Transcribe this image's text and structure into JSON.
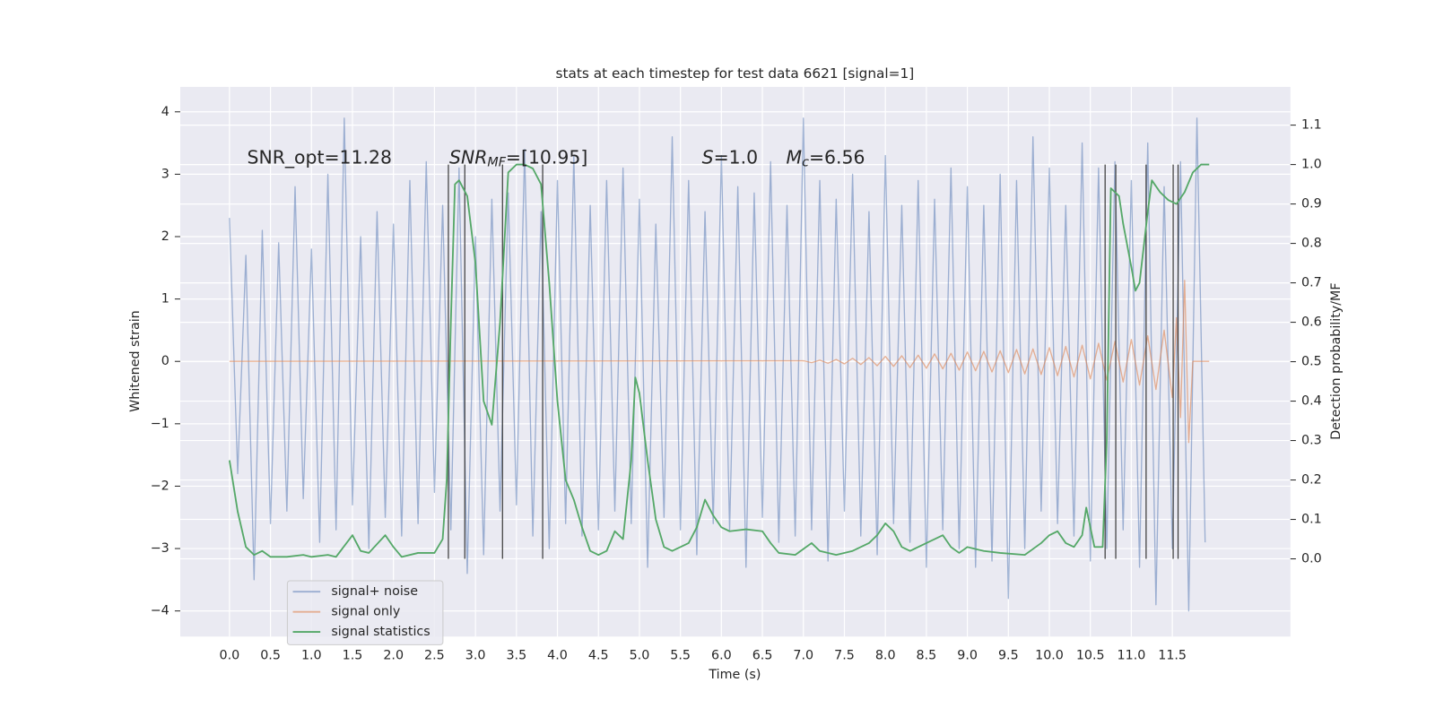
{
  "chart_data": {
    "type": "line",
    "title": "stats at each timestep for test data 6621 [signal=1]",
    "x_label": "Time (s)",
    "y_label": "Whitened strain",
    "y2_label": "Detection probability/MF",
    "xlim": [
      -0.6,
      12.94
    ],
    "ylim": [
      -4.41,
      4.4
    ],
    "y2lim": [
      -0.197,
      1.197
    ],
    "xticks": [
      {
        "value": 0,
        "label": "0.0"
      },
      0.5,
      {
        "value": 1,
        "label": "1.0"
      },
      1.5,
      {
        "value": 2,
        "label": "2.0"
      },
      2.5,
      {
        "value": 3,
        "label": "3.0"
      },
      3.5,
      {
        "value": 4,
        "label": "4.0"
      },
      4.5,
      {
        "value": 5,
        "label": "5.0"
      },
      5.5,
      {
        "value": 6,
        "label": "6.0"
      },
      6.5,
      {
        "value": 7,
        "label": "7.0"
      },
      7.5,
      {
        "value": 8,
        "label": "8.0"
      },
      8.5,
      {
        "value": 9,
        "label": "9.0"
      },
      9.5,
      {
        "value": 10,
        "label": "10.0"
      },
      10.5,
      {
        "value": 11,
        "label": "11.0"
      },
      11.5
    ],
    "yticks": [
      {
        "value": -4,
        "label": "−4"
      },
      {
        "value": -3,
        "label": "−3"
      },
      {
        "value": -2,
        "label": "−2"
      },
      {
        "value": -1,
        "label": "−1"
      },
      0,
      1,
      2,
      3,
      4
    ],
    "y2ticks": [
      {
        "value": 0,
        "label": "0.0"
      },
      0.1,
      0.2,
      0.3,
      0.4,
      0.5,
      0.6,
      0.7,
      0.8,
      0.9,
      {
        "value": 1,
        "label": "1.0"
      },
      1.1
    ],
    "grid": true,
    "legend": "lower left",
    "annotations": [
      {
        "text": "SNR_opt=11.28"
      },
      {
        "base": "SNR",
        "sub": "MF",
        "text": "=[10.95]"
      },
      {
        "base": "S",
        "text": "=1.0"
      },
      {
        "base": "M",
        "sub": "c",
        "text": "=6.56"
      }
    ],
    "vlines": {
      "x": [
        2.67,
        2.87,
        3.33,
        3.82,
        10.68,
        10.81,
        11.18,
        11.51,
        11.57
      ],
      "ymin": 0,
      "ymax": 1,
      "axis": "y2",
      "color": "#3a3a3a"
    },
    "series": [
      {
        "name": "signal+ noise",
        "color": "#4c72b0",
        "opacity": 0.5,
        "axis": "y",
        "x": [
          0.0,
          0.1,
          0.2,
          0.3,
          0.4,
          0.5,
          0.6,
          0.7,
          0.8,
          0.9,
          1.0,
          1.1,
          1.2,
          1.3,
          1.4,
          1.5,
          1.6,
          1.7,
          1.8,
          1.9,
          2.0,
          2.1,
          2.2,
          2.3,
          2.4,
          2.5,
          2.6,
          2.7,
          2.8,
          2.9,
          3.0,
          3.1,
          3.2,
          3.3,
          3.4,
          3.5,
          3.6,
          3.7,
          3.8,
          3.9,
          4.0,
          4.1,
          4.2,
          4.3,
          4.4,
          4.5,
          4.6,
          4.7,
          4.8,
          4.9,
          5.0,
          5.1,
          5.2,
          5.3,
          5.4,
          5.5,
          5.6,
          5.7,
          5.8,
          5.9,
          6.0,
          6.1,
          6.2,
          6.3,
          6.4,
          6.5,
          6.6,
          6.7,
          6.8,
          6.9,
          7.0,
          7.1,
          7.2,
          7.3,
          7.4,
          7.5,
          7.6,
          7.7,
          7.8,
          7.9,
          8.0,
          8.1,
          8.2,
          8.3,
          8.4,
          8.5,
          8.6,
          8.7,
          8.8,
          8.9,
          9.0,
          9.1,
          9.2,
          9.3,
          9.4,
          9.5,
          9.6,
          9.7,
          9.8,
          9.9,
          10.0,
          10.1,
          10.2,
          10.3,
          10.4,
          10.5,
          10.6,
          10.7,
          10.8,
          10.9,
          11.0,
          11.1,
          11.2,
          11.3,
          11.4,
          11.5,
          11.6,
          11.7,
          11.8,
          11.9
        ],
        "values": [
          2.3,
          -1.8,
          1.7,
          -3.5,
          2.1,
          -2.6,
          1.9,
          -2.4,
          2.8,
          -2.2,
          1.8,
          -2.9,
          3.0,
          -2.7,
          3.9,
          -2.3,
          2.0,
          -3.0,
          2.4,
          -2.5,
          2.2,
          -2.8,
          2.9,
          -2.6,
          3.2,
          -2.1,
          2.5,
          -2.7,
          3.1,
          -3.4,
          2.0,
          -3.1,
          2.6,
          -2.4,
          2.7,
          -2.3,
          3.4,
          -2.8,
          2.4,
          -3.0,
          2.9,
          -2.6,
          3.3,
          -2.8,
          2.5,
          -2.7,
          2.9,
          -2.4,
          3.1,
          -2.6,
          2.6,
          -3.3,
          2.2,
          -2.5,
          3.6,
          -2.7,
          2.9,
          -3.1,
          2.4,
          -2.6,
          3.3,
          -2.7,
          2.8,
          -3.3,
          2.7,
          -2.5,
          3.2,
          -2.9,
          2.5,
          -2.8,
          3.9,
          -2.7,
          2.9,
          -3.2,
          2.6,
          -2.4,
          3.0,
          -2.8,
          2.4,
          -3.1,
          3.3,
          -2.6,
          2.5,
          -2.9,
          2.9,
          -3.3,
          2.6,
          -2.7,
          3.1,
          -3.0,
          2.8,
          -3.3,
          2.5,
          -3.2,
          3.0,
          -3.8,
          2.9,
          -3.0,
          3.6,
          -2.4,
          3.1,
          -2.6,
          2.5,
          -2.8,
          3.5,
          -3.2,
          3.1,
          -3.0,
          3.2,
          -2.7,
          2.9,
          -3.3,
          3.5,
          -3.9,
          2.8,
          -3.0,
          3.2,
          -4.0,
          3.9,
          -2.9
        ]
      },
      {
        "name": "signal only",
        "color": "#dd8452",
        "opacity": 0.6,
        "axis": "y",
        "x": [
          0.0,
          7.0,
          7.1,
          7.2,
          7.3,
          7.4,
          7.5,
          7.6,
          7.7,
          7.8,
          7.9,
          8.0,
          8.1,
          8.2,
          8.3,
          8.4,
          8.5,
          8.6,
          8.7,
          8.8,
          8.9,
          9.0,
          9.1,
          9.2,
          9.3,
          9.4,
          9.5,
          9.6,
          9.7,
          9.8,
          9.9,
          10.0,
          10.1,
          10.2,
          10.3,
          10.4,
          10.5,
          10.6,
          10.7,
          10.8,
          10.9,
          11.0,
          11.1,
          11.2,
          11.3,
          11.4,
          11.5,
          11.55,
          11.6,
          11.65,
          11.7,
          11.75,
          11.95
        ],
        "values": [
          0,
          0.01,
          -0.02,
          0.02,
          -0.03,
          0.03,
          -0.04,
          0.05,
          -0.05,
          0.06,
          -0.07,
          0.08,
          -0.08,
          0.09,
          -0.1,
          0.1,
          -0.11,
          0.12,
          -0.12,
          0.13,
          -0.14,
          0.15,
          -0.15,
          0.16,
          -0.17,
          0.17,
          -0.18,
          0.19,
          -0.2,
          0.2,
          -0.21,
          0.22,
          -0.23,
          0.24,
          -0.25,
          0.26,
          -0.28,
          0.29,
          -0.3,
          0.32,
          -0.33,
          0.35,
          -0.38,
          0.41,
          -0.45,
          0.5,
          -0.58,
          0.7,
          -0.9,
          1.3,
          -1.3,
          0,
          0
        ]
      },
      {
        "name": "signal statistics",
        "color": "#55a868",
        "opacity": 1,
        "axis": "y2",
        "x": [
          0.0,
          0.1,
          0.2,
          0.3,
          0.4,
          0.5,
          0.7,
          0.9,
          1.0,
          1.2,
          1.3,
          1.5,
          1.6,
          1.7,
          1.9,
          2.0,
          2.1,
          2.3,
          2.5,
          2.6,
          2.65,
          2.7,
          2.75,
          2.8,
          2.9,
          3.0,
          3.1,
          3.2,
          3.3,
          3.4,
          3.5,
          3.6,
          3.7,
          3.8,
          3.9,
          4.0,
          4.1,
          4.2,
          4.3,
          4.4,
          4.5,
          4.6,
          4.7,
          4.8,
          4.9,
          4.95,
          5.0,
          5.1,
          5.2,
          5.3,
          5.4,
          5.6,
          5.7,
          5.8,
          5.9,
          6.0,
          6.1,
          6.3,
          6.5,
          6.6,
          6.7,
          6.9,
          7.1,
          7.2,
          7.4,
          7.6,
          7.8,
          7.9,
          8.0,
          8.1,
          8.2,
          8.3,
          8.5,
          8.7,
          8.8,
          8.9,
          9.0,
          9.2,
          9.4,
          9.7,
          9.9,
          10.0,
          10.1,
          10.2,
          10.3,
          10.4,
          10.45,
          10.55,
          10.65,
          10.7,
          10.75,
          10.85,
          10.9,
          11.0,
          11.05,
          11.1,
          11.2,
          11.25,
          11.35,
          11.45,
          11.55,
          11.65,
          11.75,
          11.85,
          11.95
        ],
        "values": [
          0.25,
          0.12,
          0.03,
          0.01,
          0.02,
          0.005,
          0.005,
          0.01,
          0.005,
          0.01,
          0.005,
          0.06,
          0.02,
          0.015,
          0.06,
          0.03,
          0.005,
          0.015,
          0.015,
          0.05,
          0.2,
          0.6,
          0.95,
          0.96,
          0.92,
          0.75,
          0.4,
          0.34,
          0.6,
          0.98,
          1.0,
          1.0,
          0.99,
          0.95,
          0.7,
          0.4,
          0.2,
          0.15,
          0.08,
          0.02,
          0.01,
          0.02,
          0.07,
          0.05,
          0.25,
          0.46,
          0.42,
          0.25,
          0.1,
          0.03,
          0.02,
          0.04,
          0.08,
          0.15,
          0.11,
          0.08,
          0.07,
          0.075,
          0.07,
          0.04,
          0.015,
          0.01,
          0.04,
          0.02,
          0.01,
          0.02,
          0.04,
          0.06,
          0.09,
          0.07,
          0.03,
          0.02,
          0.04,
          0.06,
          0.03,
          0.015,
          0.03,
          0.02,
          0.015,
          0.01,
          0.04,
          0.06,
          0.07,
          0.04,
          0.03,
          0.06,
          0.13,
          0.03,
          0.03,
          0.3,
          0.94,
          0.92,
          0.85,
          0.74,
          0.68,
          0.7,
          0.88,
          0.96,
          0.93,
          0.91,
          0.9,
          0.93,
          0.98,
          1.0,
          1.0
        ]
      }
    ]
  }
}
